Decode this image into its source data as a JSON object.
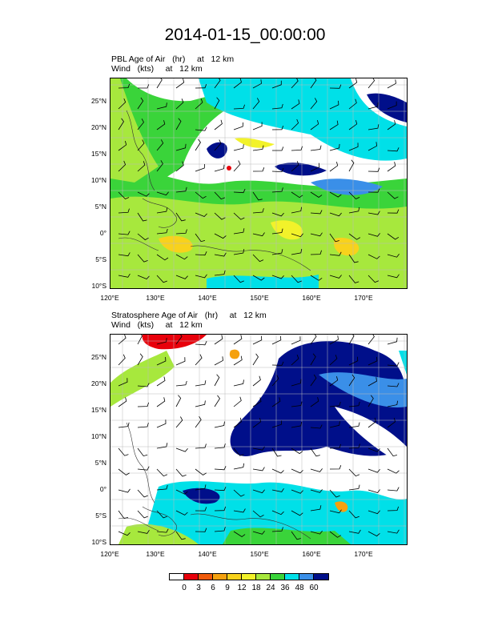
{
  "title": "2014-01-15_00:00:00",
  "panels": [
    {
      "field_line": "PBL Age of Air   (hr)     at   12 km",
      "wind_line": "Wind   (kts)     at   12 km"
    },
    {
      "field_line": "Stratosphere Age of Air   (hr)     at   12 km",
      "wind_line": "Wind   (kts)     at   12 km"
    }
  ],
  "lat_labels": [
    "25°N",
    "20°N",
    "15°N",
    "10°N",
    "5°N",
    "0°",
    "5°S",
    "10°S"
  ],
  "lon_labels": [
    "120°E",
    "130°E",
    "140°E",
    "150°E",
    "160°E",
    "170°E"
  ],
  "colorbar": {
    "labels": [
      "0",
      "3",
      "6",
      "9",
      "12",
      "18",
      "24",
      "36",
      "48",
      "60"
    ],
    "colors": [
      "#ffffff",
      "#e8000b",
      "#f05a0a",
      "#f5a10f",
      "#f8d21c",
      "#f2f22a",
      "#a7e83d",
      "#3ad43a",
      "#00e0e8",
      "#3a8fe8",
      "#000f8a"
    ]
  }
}
